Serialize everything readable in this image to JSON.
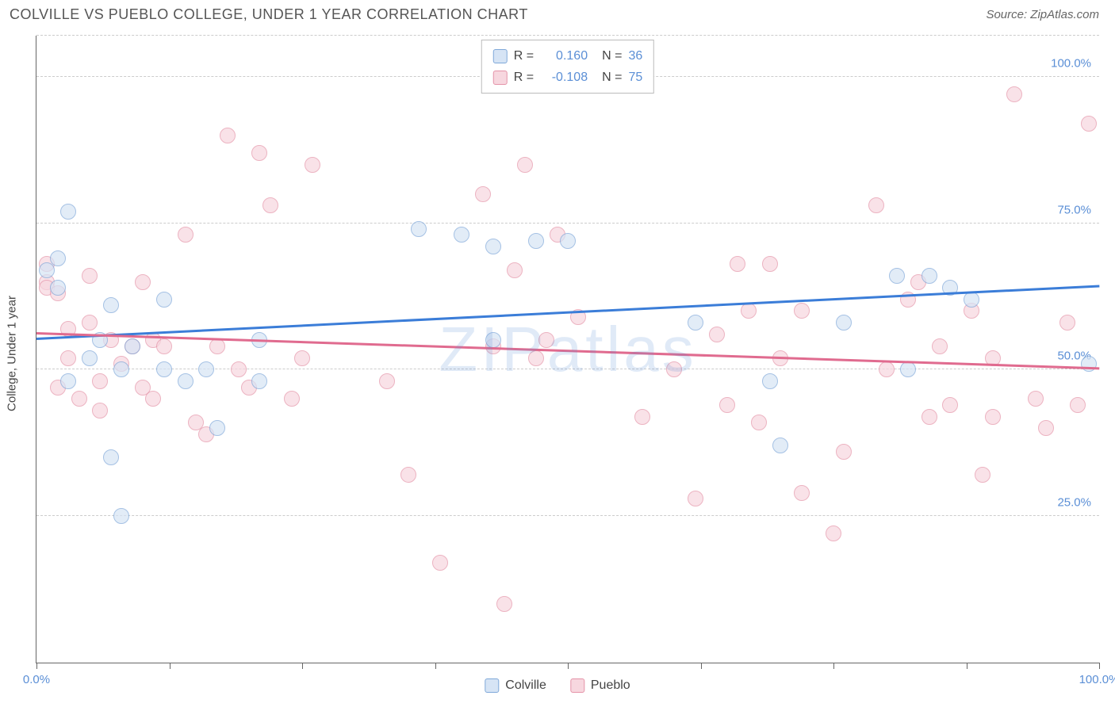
{
  "header": {
    "title": "COLVILLE VS PUEBLO COLLEGE, UNDER 1 YEAR CORRELATION CHART",
    "source": "Source: ZipAtlas.com"
  },
  "chart": {
    "type": "scatter",
    "ylabel": "College, Under 1 year",
    "watermark": "ZIPatlas",
    "xlim": [
      0,
      100
    ],
    "ylim": [
      0,
      107
    ],
    "xtick_positions": [
      0,
      12.5,
      25,
      37.5,
      50,
      62.5,
      75,
      87.5,
      100
    ],
    "xtick_labels": {
      "0": "0.0%",
      "100": "100.0%"
    },
    "ytick_positions": [
      25,
      50,
      75,
      100
    ],
    "ytick_labels": {
      "25": "25.0%",
      "50": "50.0%",
      "75": "75.0%",
      "100": "100.0%"
    },
    "grid_positions_y": [
      25,
      50,
      75,
      100,
      107
    ],
    "marker_radius": 10,
    "marker_border_width": 1.5,
    "series": {
      "colville": {
        "label": "Colville",
        "fill": "#d6e4f5",
        "stroke": "#7fa8d9",
        "fill_opacity": 0.7,
        "r_value": "0.160",
        "n_value": "36",
        "trend": {
          "y0": 55,
          "y1": 64,
          "color": "#3b7dd8",
          "width": 3
        },
        "points": [
          [
            1,
            67
          ],
          [
            2,
            69
          ],
          [
            2,
            64
          ],
          [
            3,
            77
          ],
          [
            3,
            48
          ],
          [
            5,
            52
          ],
          [
            6,
            55
          ],
          [
            7,
            61
          ],
          [
            7,
            35
          ],
          [
            8,
            25
          ],
          [
            8,
            50
          ],
          [
            9,
            54
          ],
          [
            12,
            62
          ],
          [
            12,
            50
          ],
          [
            14,
            48
          ],
          [
            16,
            50
          ],
          [
            17,
            40
          ],
          [
            21,
            48
          ],
          [
            21,
            55
          ],
          [
            36,
            74
          ],
          [
            40,
            73
          ],
          [
            43,
            71
          ],
          [
            43,
            55
          ],
          [
            47,
            72
          ],
          [
            50,
            72
          ],
          [
            53,
            104
          ],
          [
            62,
            58
          ],
          [
            69,
            48
          ],
          [
            70,
            37
          ],
          [
            76,
            58
          ],
          [
            81,
            66
          ],
          [
            82,
            50
          ],
          [
            84,
            66
          ],
          [
            86,
            64
          ],
          [
            88,
            62
          ],
          [
            99,
            51
          ]
        ]
      },
      "pueblo": {
        "label": "Pueblo",
        "fill": "#f7d7df",
        "stroke": "#e593a8",
        "fill_opacity": 0.7,
        "r_value": "-0.108",
        "n_value": "75",
        "trend": {
          "y0": 56,
          "y1": 50,
          "color": "#e06b8f",
          "width": 3
        },
        "points": [
          [
            1,
            65
          ],
          [
            1,
            68
          ],
          [
            1,
            64
          ],
          [
            2,
            47
          ],
          [
            2,
            63
          ],
          [
            3,
            52
          ],
          [
            3,
            57
          ],
          [
            4,
            45
          ],
          [
            5,
            66
          ],
          [
            5,
            58
          ],
          [
            6,
            48
          ],
          [
            6,
            43
          ],
          [
            7,
            55
          ],
          [
            8,
            51
          ],
          [
            9,
            54
          ],
          [
            10,
            47
          ],
          [
            10,
            65
          ],
          [
            11,
            55
          ],
          [
            11,
            45
          ],
          [
            12,
            54
          ],
          [
            14,
            73
          ],
          [
            15,
            41
          ],
          [
            16,
            39
          ],
          [
            17,
            54
          ],
          [
            18,
            90
          ],
          [
            19,
            50
          ],
          [
            20,
            47
          ],
          [
            21,
            87
          ],
          [
            22,
            78
          ],
          [
            24,
            45
          ],
          [
            25,
            52
          ],
          [
            26,
            85
          ],
          [
            33,
            48
          ],
          [
            35,
            32
          ],
          [
            38,
            17
          ],
          [
            42,
            80
          ],
          [
            43,
            54
          ],
          [
            44,
            10
          ],
          [
            45,
            67
          ],
          [
            46,
            85
          ],
          [
            47,
            52
          ],
          [
            48,
            55
          ],
          [
            49,
            73
          ],
          [
            51,
            59
          ],
          [
            57,
            42
          ],
          [
            60,
            50
          ],
          [
            62,
            28
          ],
          [
            64,
            56
          ],
          [
            65,
            44
          ],
          [
            66,
            68
          ],
          [
            67,
            60
          ],
          [
            68,
            41
          ],
          [
            69,
            68
          ],
          [
            70,
            52
          ],
          [
            72,
            60
          ],
          [
            72,
            29
          ],
          [
            75,
            22
          ],
          [
            76,
            36
          ],
          [
            79,
            78
          ],
          [
            80,
            50
          ],
          [
            82,
            62
          ],
          [
            83,
            65
          ],
          [
            84,
            42
          ],
          [
            85,
            54
          ],
          [
            86,
            44
          ],
          [
            88,
            60
          ],
          [
            89,
            32
          ],
          [
            90,
            52
          ],
          [
            90,
            42
          ],
          [
            92,
            97
          ],
          [
            94,
            45
          ],
          [
            95,
            40
          ],
          [
            97,
            58
          ],
          [
            98,
            44
          ],
          [
            99,
            92
          ]
        ]
      }
    }
  }
}
